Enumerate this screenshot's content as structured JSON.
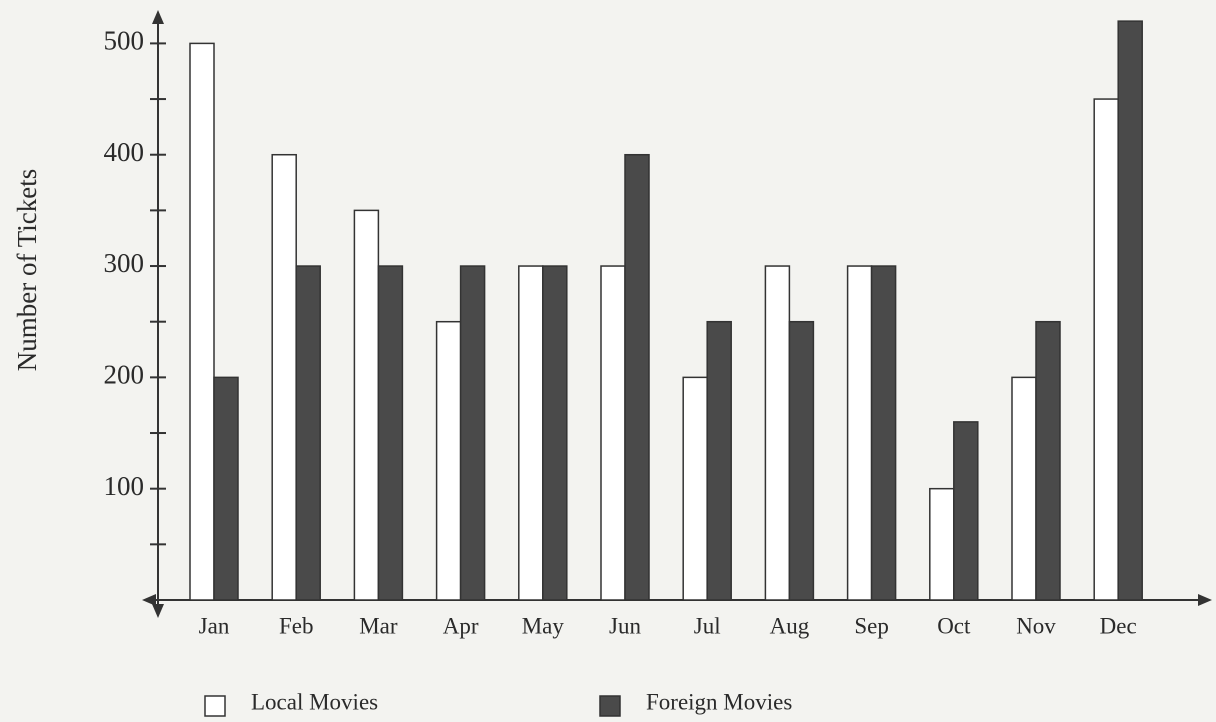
{
  "chart_data": {
    "type": "bar",
    "y_label": "Number of Tickets",
    "categories": [
      "Jan",
      "Feb",
      "Mar",
      "Apr",
      "May",
      "Jun",
      "Jul",
      "Aug",
      "Sep",
      "Oct",
      "Nov",
      "Dec"
    ],
    "series": [
      {
        "name": "Local Movies",
        "color": "#ffffff",
        "values": [
          500,
          400,
          350,
          250,
          300,
          300,
          200,
          300,
          300,
          100,
          200,
          450
        ]
      },
      {
        "name": "Foreign Movies",
        "color": "#4a4a4a",
        "values": [
          200,
          300,
          300,
          300,
          300,
          400,
          250,
          250,
          300,
          160,
          250,
          520
        ]
      }
    ],
    "ylim": [
      0,
      530
    ],
    "yticks": [
      100,
      200,
      300,
      400,
      500
    ],
    "yminor_ticks": [
      50,
      150,
      250,
      350,
      450
    ],
    "grid": false
  }
}
